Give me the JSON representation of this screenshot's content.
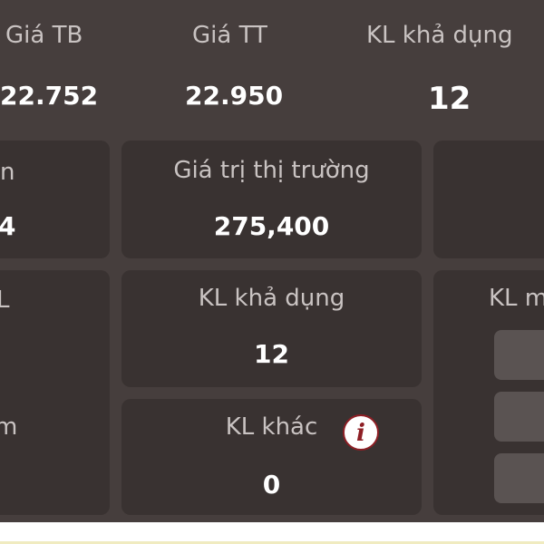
{
  "summary": [
    {
      "label": "Giá TB",
      "value": "22.752"
    },
    {
      "label": "Giá TT",
      "value": "22.950"
    },
    {
      "label": "KL khả dụng",
      "value": "12"
    }
  ],
  "cards": {
    "left_top": {
      "label_fragment": "n",
      "value_fragment": "4"
    },
    "market_value": {
      "label": "Giá trị thị trường",
      "value": "275,400"
    },
    "left_bottom": {
      "label_fragment_1": "L",
      "label_fragment_2": "m"
    },
    "available_qty": {
      "label": "KL khả dụng",
      "value": "12"
    },
    "other_qty": {
      "label": "KL khác",
      "value": "0",
      "info_icon": "i"
    },
    "right_bottom": {
      "label_fragment": "KL m"
    }
  },
  "colors": {
    "background": "#463e3d",
    "card": "#393231",
    "button": "#5a5352",
    "info_accent": "#8e1f25"
  }
}
